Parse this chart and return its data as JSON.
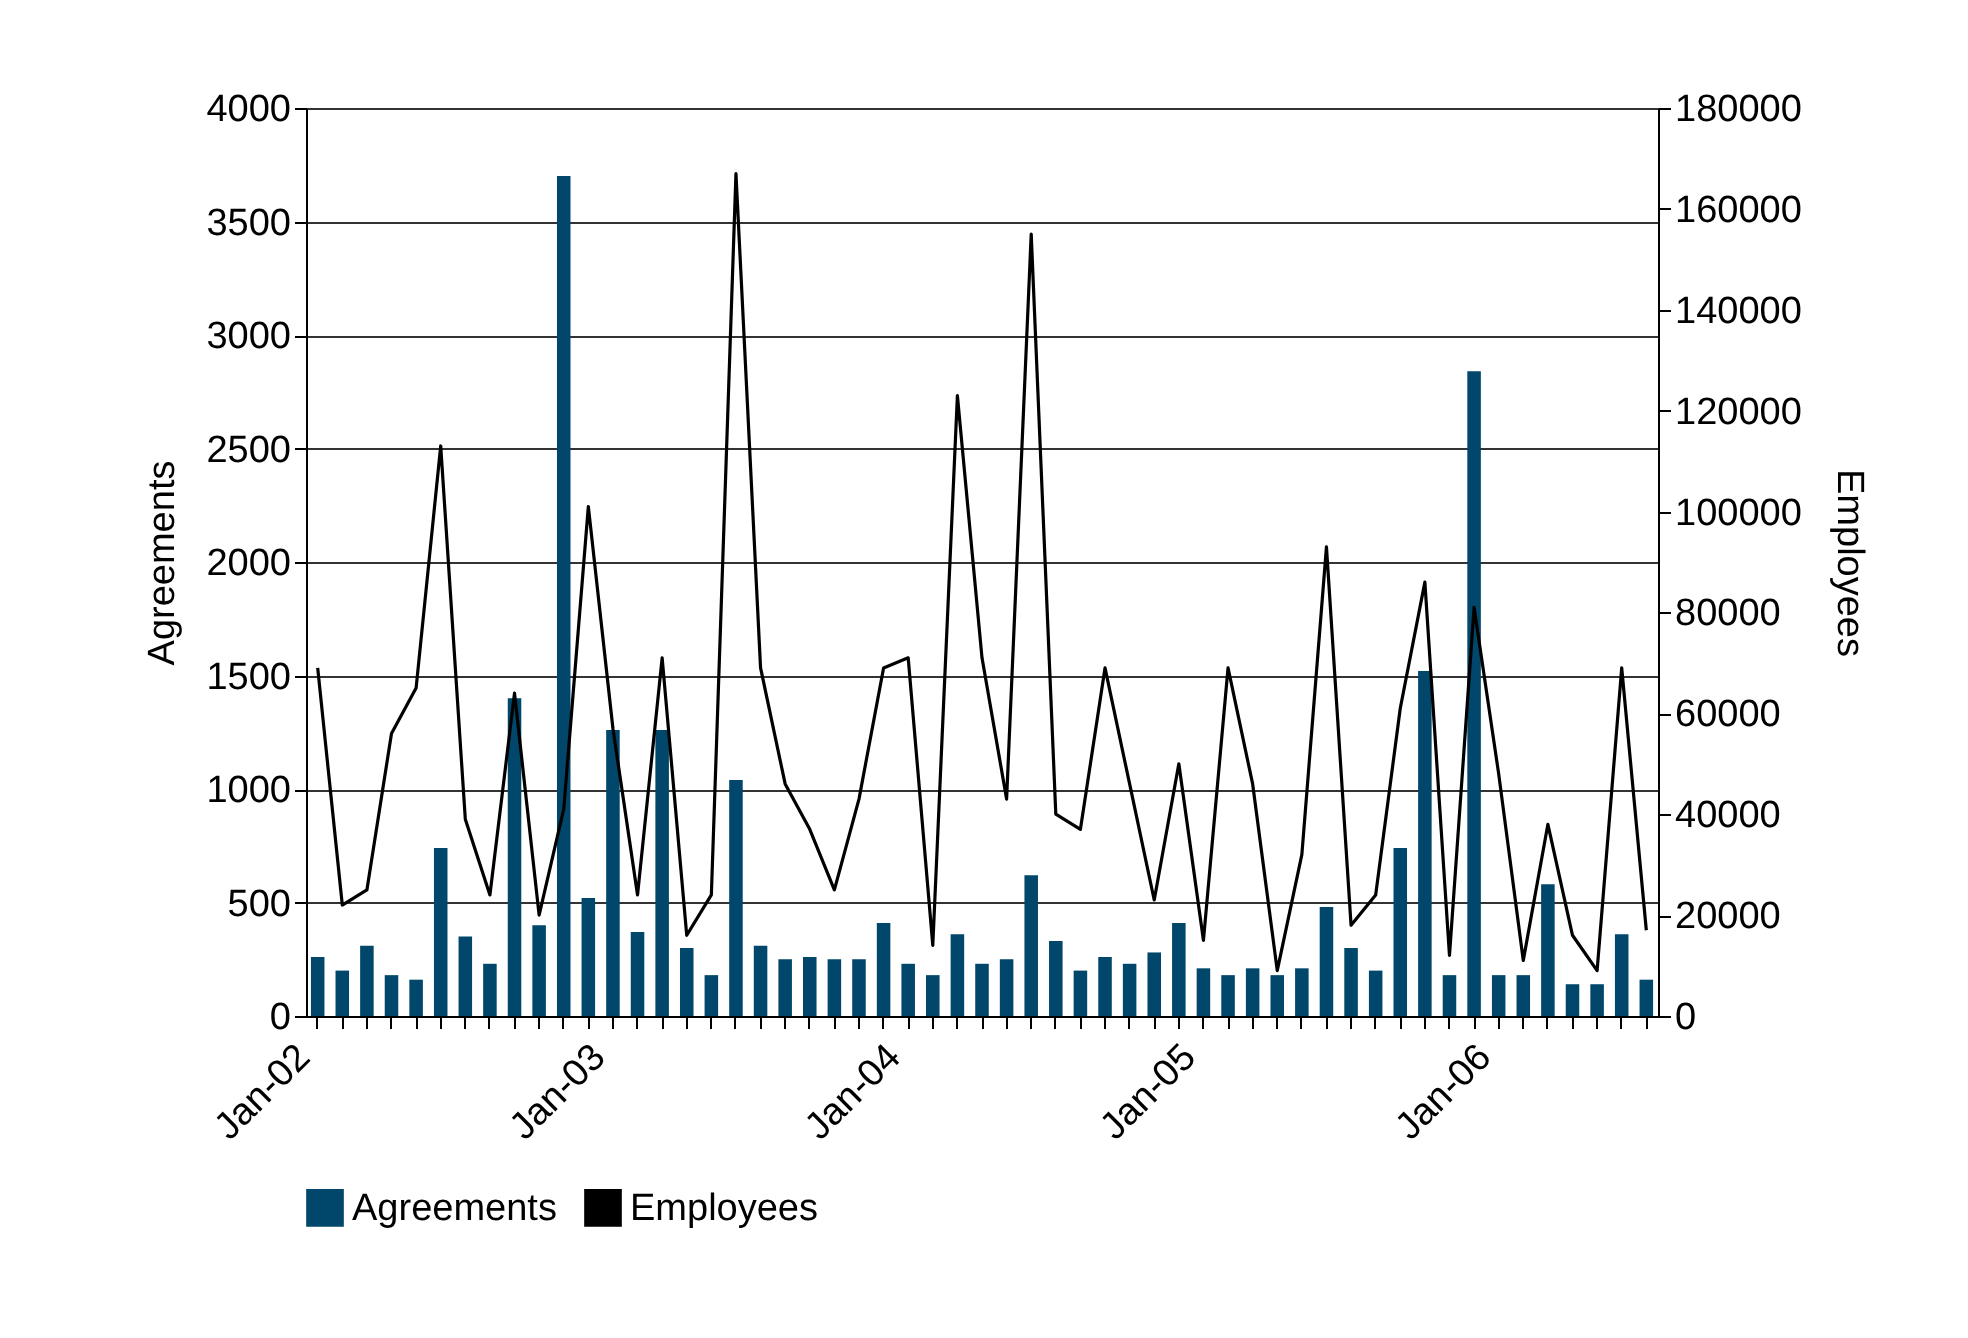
{
  "chart_data": {
    "type": "bar",
    "categories": [
      "Jan-02",
      null,
      null,
      null,
      null,
      null,
      null,
      null,
      null,
      null,
      null,
      null,
      "Jan-03",
      null,
      null,
      null,
      null,
      null,
      null,
      null,
      null,
      null,
      null,
      null,
      "Jan-04",
      null,
      null,
      null,
      null,
      null,
      null,
      null,
      null,
      null,
      null,
      null,
      "Jan-05",
      null,
      null,
      null,
      null,
      null,
      null,
      null,
      null,
      null,
      null,
      null,
      "Jan-06",
      null,
      null,
      null,
      null,
      null,
      null
    ],
    "ylabel": "Agreements",
    "y2label": "Employees",
    "ylim": [
      0,
      4000
    ],
    "yticks": [
      0,
      500,
      1000,
      1500,
      2000,
      2500,
      3000,
      3500,
      4000
    ],
    "y2lim": [
      0,
      180000
    ],
    "y2ticks": [
      0,
      20000,
      40000,
      60000,
      80000,
      100000,
      120000,
      140000,
      160000,
      180000
    ],
    "series": [
      {
        "name": "Agreements",
        "color": "#00476b",
        "values": [
          260,
          200,
          310,
          180,
          160,
          740,
          350,
          230,
          1400,
          400,
          3700,
          520,
          1260,
          370,
          1260,
          300,
          180,
          1040,
          310,
          250,
          260,
          250,
          250,
          410,
          230,
          180,
          360,
          230,
          250,
          620,
          330,
          200,
          260,
          230,
          280,
          410,
          210,
          180,
          210,
          180,
          210,
          480,
          300,
          200,
          740,
          1520,
          180,
          2840,
          180,
          180,
          580,
          140,
          140,
          360,
          160
        ]
      },
      {
        "name": "Employees",
        "type": "line",
        "axis": "y2",
        "color": "#000000",
        "values": [
          69000,
          22000,
          25000,
          56000,
          65000,
          113000,
          39000,
          24000,
          64000,
          20000,
          41000,
          101000,
          57000,
          24000,
          71000,
          16000,
          24000,
          167000,
          69000,
          46000,
          37000,
          25000,
          43000,
          69000,
          71000,
          14000,
          123000,
          71000,
          43000,
          155000,
          40000,
          37000,
          69000,
          46000,
          23000,
          50000,
          15000,
          69000,
          46000,
          9000,
          32000,
          93000,
          18000,
          24000,
          61000,
          86000,
          12000,
          81000,
          48000,
          11000,
          38000,
          16000,
          9000,
          69000,
          17000
        ]
      }
    ],
    "grid": "y",
    "legend": "bottom"
  }
}
